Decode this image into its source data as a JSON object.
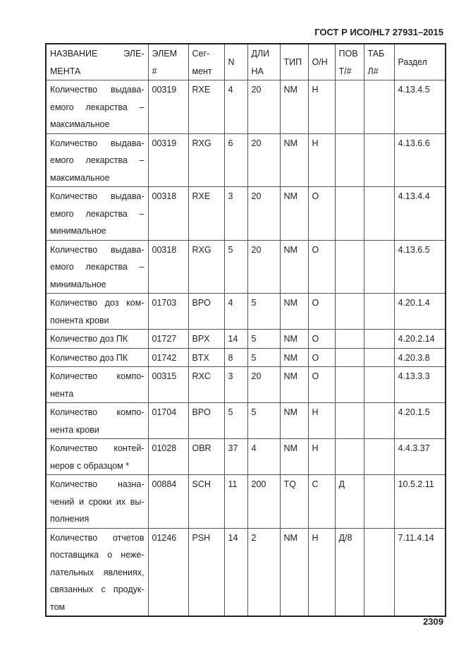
{
  "header": "ГОСТ Р ИСО/HL7 27931–2015",
  "page_number": "2309",
  "columns": [
    [
      "НАЗВАНИЕ ЭЛЕ-",
      "МЕНТА"
    ],
    [
      "ЭЛЕМ",
      "#"
    ],
    [
      "Сег-",
      "мент"
    ],
    [
      "N"
    ],
    [
      "ДЛИ",
      "НА"
    ],
    [
      "ТИП"
    ],
    [
      "О/Н"
    ],
    [
      "ПОВ",
      "Т/#"
    ],
    [
      "ТАБ",
      "Л#"
    ],
    [
      "Раздел"
    ]
  ],
  "rows": [
    {
      "name": [
        "Количество выдава-",
        "емого лекарства –",
        "максимальное"
      ],
      "cells": [
        "00319",
        "RXE",
        "4",
        "20",
        "NM",
        "Н",
        "",
        "",
        "4.13.4.5"
      ]
    },
    {
      "name": [
        "Количество выдава-",
        "емого лекарства –",
        "максимальное"
      ],
      "cells": [
        "00319",
        "RXG",
        "6",
        "20",
        "NM",
        "Н",
        "",
        "",
        "4.13.6.6"
      ]
    },
    {
      "name": [
        "Количество выдава-",
        "емого лекарства –",
        "минимальное"
      ],
      "cells": [
        "00318",
        "RXE",
        "3",
        "20",
        "NM",
        "О",
        "",
        "",
        "4.13.4.4"
      ]
    },
    {
      "name": [
        "Количество выдава-",
        "емого лекарства –",
        "минимальное"
      ],
      "cells": [
        "00318",
        "RXG",
        "5",
        "20",
        "NM",
        "О",
        "",
        "",
        "4.13.6.5"
      ]
    },
    {
      "name": [
        "Количество доз ком-",
        "понента крови"
      ],
      "cells": [
        "01703",
        "BPO",
        "4",
        "5",
        "NM",
        "О",
        "",
        "",
        "4.20.1.4"
      ]
    },
    {
      "name": [
        "Количество доз ПК"
      ],
      "cells": [
        "01727",
        "BPX",
        "14",
        "5",
        "NM",
        "О",
        "",
        "",
        "4.20.2.14"
      ]
    },
    {
      "name": [
        "Количество доз ПК"
      ],
      "cells": [
        "01742",
        "BTX",
        "8",
        "5",
        "NM",
        "О",
        "",
        "",
        "4.20.3.8"
      ]
    },
    {
      "name": [
        "Количество компо-",
        "нента"
      ],
      "cells": [
        "00315",
        "RXC",
        "3",
        "20",
        "NM",
        "О",
        "",
        "",
        "4.13.3.3"
      ]
    },
    {
      "name": [
        "Количество компо-",
        "нента крови"
      ],
      "cells": [
        "01704",
        "BPO",
        "5",
        "5",
        "NM",
        "Н",
        "",
        "",
        "4.20.1.5"
      ]
    },
    {
      "name": [
        "Количество контей-",
        "неров с образцом *"
      ],
      "cells": [
        "01028",
        "OBR",
        "37",
        "4",
        "NM",
        "Н",
        "",
        "",
        "4.4.3.37"
      ]
    },
    {
      "name": [
        "Количество назна-",
        "чений и сроки их вы-",
        "полнения"
      ],
      "cells": [
        "00884",
        "SCH",
        "11",
        "200",
        "TQ",
        "С",
        "Д",
        "",
        "10.5.2.11"
      ]
    },
    {
      "name": [
        "Количество отчетов",
        "поставщика о неже-",
        "лательных явлениях,",
        "связанных с продук-",
        "том"
      ],
      "cells": [
        "01246",
        "PSH",
        "14",
        "2",
        "NM",
        "Н",
        "Д/8",
        "",
        "7.11.4.14"
      ]
    }
  ]
}
